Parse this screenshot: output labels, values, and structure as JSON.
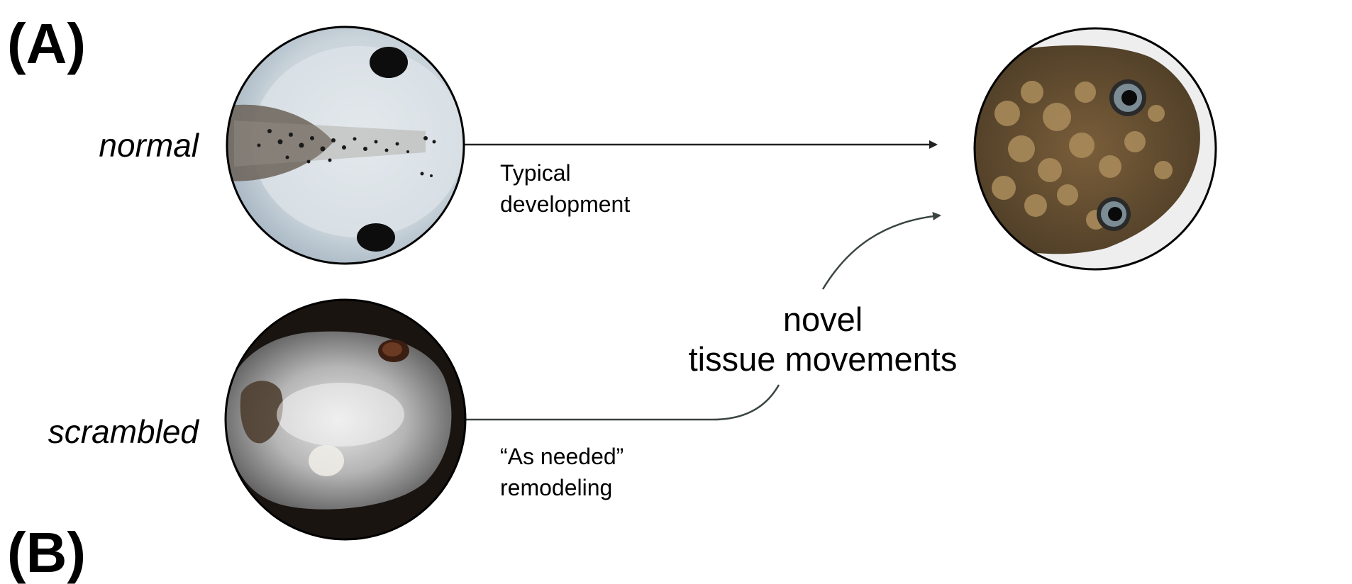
{
  "panels": {
    "a_label": "(A)",
    "b_label": "(B)"
  },
  "rows": {
    "normal_label": "normal",
    "scrambled_label": "scrambled"
  },
  "arrows": {
    "typical_label": "Typical\ndevelopment",
    "remodel_label": "“As needed”\nremodeling",
    "novel_label": "novel\ntissue movements"
  },
  "colors": {
    "arrow": "#222222",
    "curve": "#3a4540",
    "circle_border": "#000000"
  },
  "icons": {
    "normal_image": "normal-tadpole-head-photo",
    "scrambled_image": "scrambled-tadpole-head-photo",
    "result_image": "normal-frog-head-photo"
  }
}
